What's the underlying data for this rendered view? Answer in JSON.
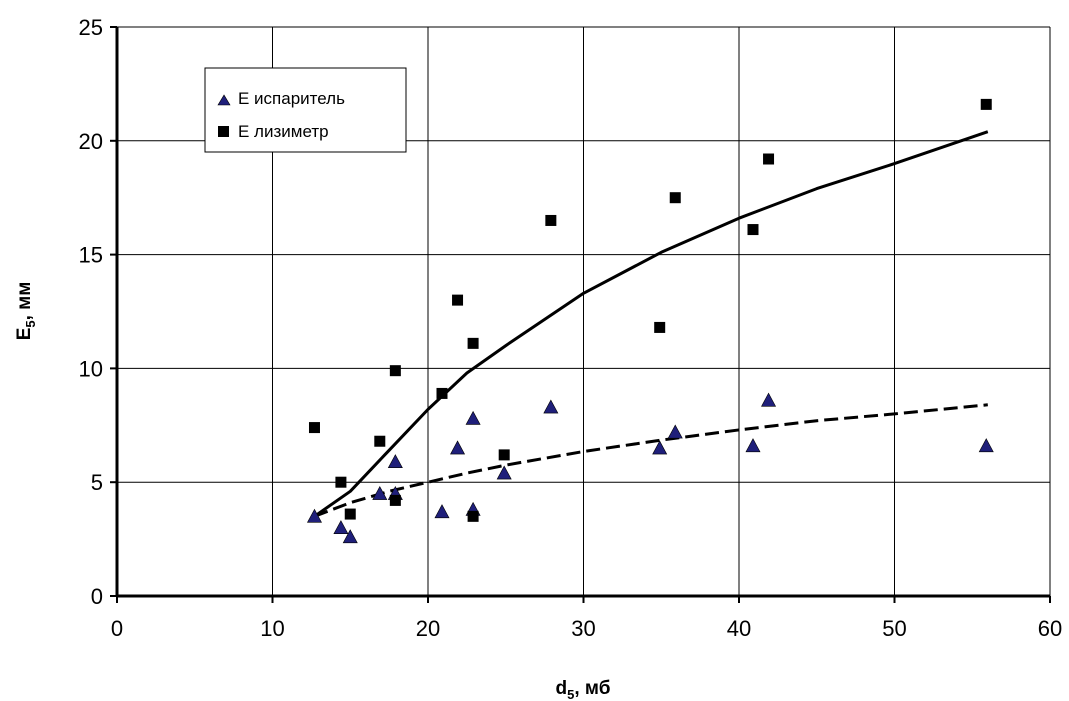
{
  "chart_data": {
    "type": "scatter",
    "title": "",
    "xlabel": {
      "main": "d",
      "sub": "5",
      "unit": ", мб"
    },
    "ylabel": {
      "main": "E",
      "sub": "5",
      "unit": ", мм"
    },
    "xlim": [
      0,
      60
    ],
    "ylim": [
      0,
      25
    ],
    "xticks": [
      0,
      10,
      20,
      30,
      40,
      50,
      60
    ],
    "yticks": [
      0,
      5,
      10,
      15,
      20,
      25
    ],
    "grid": true,
    "legend_position": "top-left",
    "series": [
      {
        "name": "Е испаритель",
        "marker": "triangle",
        "color": "#1f1f7a",
        "points": [
          [
            12.7,
            3.5
          ],
          [
            14.4,
            3.0
          ],
          [
            15.0,
            2.6
          ],
          [
            16.9,
            4.5
          ],
          [
            17.9,
            4.5
          ],
          [
            17.9,
            5.9
          ],
          [
            20.9,
            3.7
          ],
          [
            21.9,
            6.5
          ],
          [
            22.9,
            3.8
          ],
          [
            22.9,
            7.8
          ],
          [
            24.9,
            5.4
          ],
          [
            27.9,
            8.3
          ],
          [
            34.9,
            6.5
          ],
          [
            35.9,
            7.2
          ],
          [
            40.9,
            6.6
          ],
          [
            41.9,
            8.6
          ],
          [
            55.9,
            6.6
          ]
        ]
      },
      {
        "name": "Е лизиметр",
        "marker": "square",
        "color": "#000000",
        "points": [
          [
            12.7,
            7.4
          ],
          [
            14.4,
            5.0
          ],
          [
            15.0,
            3.6
          ],
          [
            16.9,
            6.8
          ],
          [
            17.9,
            4.2
          ],
          [
            17.9,
            9.9
          ],
          [
            20.9,
            8.9
          ],
          [
            21.9,
            13.0
          ],
          [
            22.9,
            3.5
          ],
          [
            22.9,
            11.1
          ],
          [
            24.9,
            6.2
          ],
          [
            27.9,
            16.5
          ],
          [
            34.9,
            11.8
          ],
          [
            35.9,
            17.5
          ],
          [
            40.9,
            16.1
          ],
          [
            41.9,
            19.2
          ],
          [
            55.9,
            21.6
          ]
        ]
      }
    ],
    "trendlines": [
      {
        "series": "Е лизиметр",
        "style": "solid",
        "color": "#000000",
        "points": [
          [
            12.7,
            3.5
          ],
          [
            15,
            4.6
          ],
          [
            17.5,
            6.4
          ],
          [
            20,
            8.2
          ],
          [
            22.5,
            9.8
          ],
          [
            25,
            11.0
          ],
          [
            30,
            13.3
          ],
          [
            35,
            15.1
          ],
          [
            40,
            16.6
          ],
          [
            45,
            17.9
          ],
          [
            50,
            19.0
          ],
          [
            56,
            20.4
          ]
        ]
      },
      {
        "series": "Е испаритель",
        "style": "dashed",
        "color": "#000000",
        "points": [
          [
            12.7,
            3.5
          ],
          [
            15,
            4.1
          ],
          [
            17.5,
            4.6
          ],
          [
            20,
            5.0
          ],
          [
            22.5,
            5.4
          ],
          [
            25,
            5.75
          ],
          [
            30,
            6.35
          ],
          [
            35,
            6.85
          ],
          [
            40,
            7.3
          ],
          [
            45,
            7.7
          ],
          [
            50,
            8.0
          ],
          [
            56,
            8.4
          ]
        ]
      }
    ]
  }
}
